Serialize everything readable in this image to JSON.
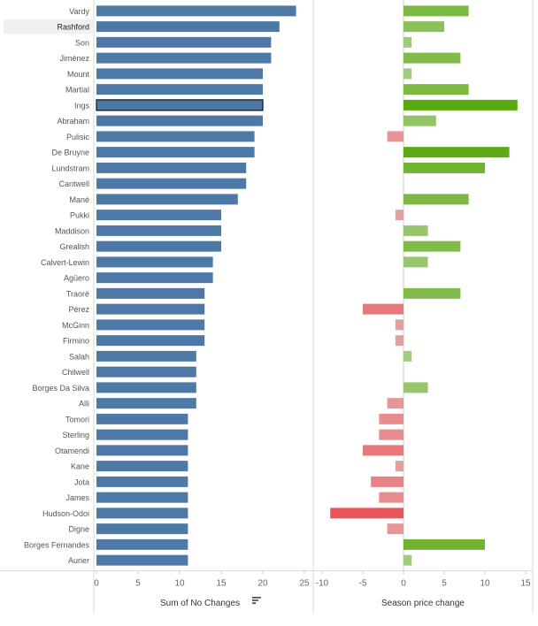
{
  "chart_data": {
    "type": "bar",
    "categories": [
      "Vardy",
      "Rashford",
      "Son",
      "Jiménez",
      "Mount",
      "Martial",
      "Ings",
      "Abraham",
      "Pulisic",
      "De Bruyne",
      "Lundstram",
      "Cantwell",
      "Mané",
      "Pukki",
      "Maddison",
      "Grealish",
      "Calvert-Lewin",
      "Agüero",
      "Traoré",
      "Pérez",
      "McGinn",
      "Firmino",
      "Salah",
      "Chilwell",
      "Borges Da Silva",
      "Alli",
      "Tomori",
      "Sterling",
      "Otamendi",
      "Kane",
      "Jota",
      "James",
      "Hudson-Odoi",
      "Digne",
      "Borges Fernandes",
      "Aurier"
    ],
    "selected_category": "Ings",
    "highlighted_row": "Rashford",
    "series": [
      {
        "name": "Sum of No Changes",
        "values": [
          24,
          22,
          21,
          21,
          20,
          20,
          20,
          20,
          19,
          19,
          18,
          18,
          17,
          15,
          15,
          15,
          14,
          14,
          13,
          13,
          13,
          13,
          12,
          12,
          12,
          12,
          11,
          11,
          11,
          11,
          11,
          11,
          11,
          11,
          11,
          11
        ],
        "xlim": [
          0,
          25
        ],
        "xticks": [
          0,
          5,
          10,
          15,
          20,
          25
        ],
        "color": "#4e79a7"
      },
      {
        "name": "Season price change",
        "values": [
          8,
          5,
          1,
          7,
          1,
          8,
          14,
          4,
          -2,
          13,
          10,
          0,
          8,
          -1,
          3,
          7,
          3,
          0,
          7,
          -5,
          -1,
          -1,
          1,
          0,
          3,
          -2,
          -3,
          -3,
          -5,
          -1,
          -4,
          -3,
          -9,
          -2,
          10,
          1
        ],
        "xlim": [
          -10,
          15
        ],
        "xticks": [
          -10,
          -5,
          0,
          5,
          10,
          15
        ],
        "color_scale": {
          "negative": "#e8555a",
          "neutral": "#dddddd",
          "positive": "#59a80f"
        }
      }
    ],
    "xlabel_left": "Sum of No Changes",
    "xlabel_right": "Season price change",
    "sort_icon": "sort-descending-icon",
    "grid": false
  }
}
